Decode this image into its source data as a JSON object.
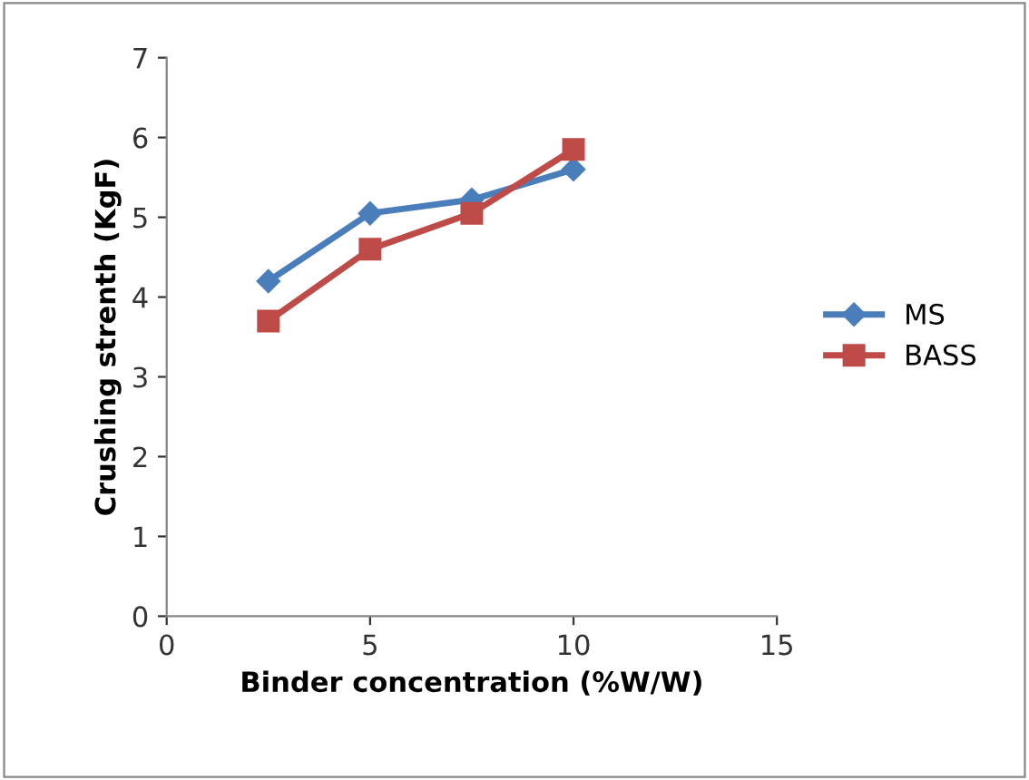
{
  "chart_data": {
    "type": "line",
    "xlabel": "Binder concentration (%W/W)",
    "ylabel": "Crushing strenth (KgF)",
    "x": [
      2.5,
      5,
      7.5,
      10
    ],
    "series": [
      {
        "name": "MS",
        "color": "#4a7ebb",
        "values": [
          4.2,
          5.05,
          5.22,
          5.6
        ],
        "marker": "diamond"
      },
      {
        "name": "BASS",
        "color": "#be4b48",
        "values": [
          3.7,
          4.6,
          5.05,
          5.85
        ],
        "marker": "square"
      }
    ],
    "xlim": [
      0,
      15
    ],
    "xticks": [
      0,
      5,
      10,
      15
    ],
    "ylim": [
      0,
      7
    ],
    "yticks": [
      0,
      1,
      2,
      3,
      4,
      5,
      6,
      7
    ],
    "grid": false,
    "legend": "right",
    "line_style": "solid"
  }
}
